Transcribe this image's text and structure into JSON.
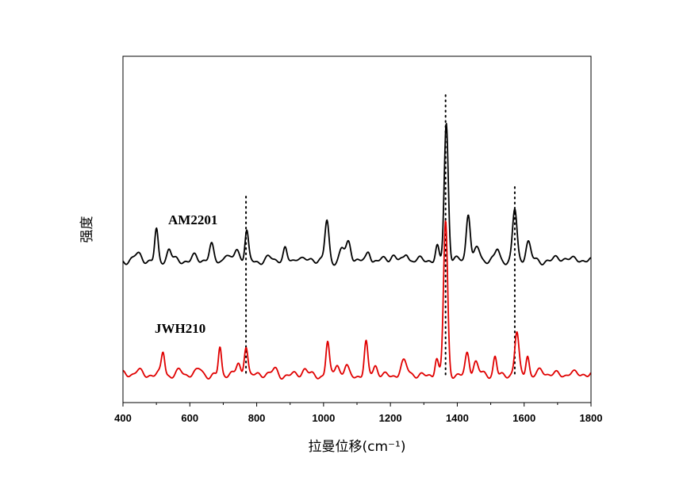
{
  "chart_data": {
    "type": "line",
    "title": "",
    "xlabel": "拉曼位移(cm⁻¹)",
    "ylabel": "强度",
    "xlim": [
      400,
      1800
    ],
    "ylim": [
      0,
      100
    ],
    "x_ticks": [
      400,
      600,
      800,
      1000,
      1200,
      1400,
      1600,
      1800
    ],
    "y_ticks_shown": false,
    "grid": false,
    "legend": "none",
    "reference_lines_x": [
      768,
      1365,
      1572
    ],
    "series": [
      {
        "name": "AM2201",
        "color": "#000000",
        "baseline": 41,
        "noise_amplitude": 1.2,
        "peaks": [
          {
            "x": 445,
            "h": 1.5,
            "w": 10
          },
          {
            "x": 500,
            "h": 9,
            "w": 5
          },
          {
            "x": 538,
            "h": 3,
            "w": 6
          },
          {
            "x": 615,
            "h": 1.5,
            "w": 8
          },
          {
            "x": 665,
            "h": 4,
            "w": 6
          },
          {
            "x": 708,
            "h": 2,
            "w": 7
          },
          {
            "x": 740,
            "h": 3.5,
            "w": 7
          },
          {
            "x": 770,
            "h": 8,
            "w": 5
          },
          {
            "x": 838,
            "h": 1,
            "w": 8
          },
          {
            "x": 885,
            "h": 3,
            "w": 5
          },
          {
            "x": 925,
            "h": 1.5,
            "w": 8
          },
          {
            "x": 1010,
            "h": 11.5,
            "w": 6
          },
          {
            "x": 1055,
            "h": 3.5,
            "w": 7
          },
          {
            "x": 1075,
            "h": 5,
            "w": 7
          },
          {
            "x": 1135,
            "h": 3,
            "w": 6
          },
          {
            "x": 1210,
            "h": 1.5,
            "w": 8
          },
          {
            "x": 1248,
            "h": 2.5,
            "w": 6
          },
          {
            "x": 1340,
            "h": 4,
            "w": 5
          },
          {
            "x": 1367,
            "h": 40,
            "w": 6
          },
          {
            "x": 1433,
            "h": 14,
            "w": 6
          },
          {
            "x": 1460,
            "h": 4,
            "w": 8
          },
          {
            "x": 1520,
            "h": 3,
            "w": 6
          },
          {
            "x": 1572,
            "h": 15,
            "w": 6.5
          },
          {
            "x": 1612,
            "h": 5,
            "w": 7
          },
          {
            "x": 1700,
            "h": 1,
            "w": 10
          },
          {
            "x": 1760,
            "h": 0.8,
            "w": 10
          }
        ]
      },
      {
        "name": "JWH210",
        "color": "#e00000",
        "baseline": 8,
        "noise_amplitude": 1.2,
        "peaks": [
          {
            "x": 445,
            "h": 1.5,
            "w": 10
          },
          {
            "x": 520,
            "h": 6.5,
            "w": 5
          },
          {
            "x": 570,
            "h": 1.5,
            "w": 8
          },
          {
            "x": 630,
            "h": 1.5,
            "w": 8
          },
          {
            "x": 690,
            "h": 8,
            "w": 4.5
          },
          {
            "x": 745,
            "h": 3,
            "w": 6
          },
          {
            "x": 768,
            "h": 9,
            "w": 5.5
          },
          {
            "x": 855,
            "h": 1.5,
            "w": 8
          },
          {
            "x": 945,
            "h": 1.5,
            "w": 7
          },
          {
            "x": 1012,
            "h": 9.5,
            "w": 5
          },
          {
            "x": 1040,
            "h": 3,
            "w": 6
          },
          {
            "x": 1068,
            "h": 2.5,
            "w": 6
          },
          {
            "x": 1127,
            "h": 9,
            "w": 5
          },
          {
            "x": 1155,
            "h": 2.5,
            "w": 6
          },
          {
            "x": 1240,
            "h": 3.5,
            "w": 9
          },
          {
            "x": 1338,
            "h": 5,
            "w": 5
          },
          {
            "x": 1365,
            "h": 44,
            "w": 6
          },
          {
            "x": 1430,
            "h": 6.5,
            "w": 6
          },
          {
            "x": 1455,
            "h": 3.5,
            "w": 7
          },
          {
            "x": 1513,
            "h": 5.5,
            "w": 5
          },
          {
            "x": 1578,
            "h": 12,
            "w": 6
          },
          {
            "x": 1610,
            "h": 6,
            "w": 5
          },
          {
            "x": 1650,
            "h": 1.5,
            "w": 8
          },
          {
            "x": 1740,
            "h": 1,
            "w": 10
          }
        ]
      }
    ]
  }
}
